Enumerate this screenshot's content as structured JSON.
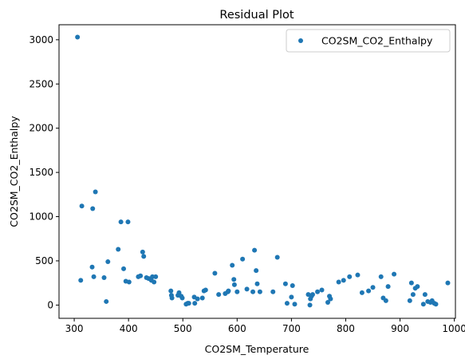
{
  "chart_data": {
    "type": "scatter",
    "title": "Residual Plot",
    "xlabel": "CO2SM_Temperature",
    "ylabel": "CO2SM_CO2_Enthalpy",
    "xlim": [
      272,
      1002
    ],
    "ylim": [
      -150,
      3170
    ],
    "xticks": [
      300,
      400,
      500,
      600,
      700,
      800,
      900,
      1000
    ],
    "yticks": [
      0,
      500,
      1000,
      1500,
      2000,
      2500,
      3000
    ],
    "legend": "top-right",
    "grid": false,
    "series": [
      {
        "name": "CO2SM_CO2_Enthalpy",
        "color": "#1f77b4",
        "points": [
          [
            306,
            3030
          ],
          [
            312,
            280
          ],
          [
            314,
            1120
          ],
          [
            333,
            430
          ],
          [
            334,
            1090
          ],
          [
            336,
            320
          ],
          [
            339,
            1280
          ],
          [
            355,
            310
          ],
          [
            359,
            40
          ],
          [
            362,
            490
          ],
          [
            381,
            630
          ],
          [
            386,
            940
          ],
          [
            391,
            410
          ],
          [
            395,
            270
          ],
          [
            399,
            940
          ],
          [
            401,
            260
          ],
          [
            418,
            320
          ],
          [
            422,
            330
          ],
          [
            426,
            600
          ],
          [
            428,
            550
          ],
          [
            433,
            310
          ],
          [
            437,
            300
          ],
          [
            442,
            280
          ],
          [
            444,
            320
          ],
          [
            447,
            260
          ],
          [
            450,
            320
          ],
          [
            478,
            160
          ],
          [
            479,
            110
          ],
          [
            480,
            80
          ],
          [
            491,
            110
          ],
          [
            493,
            140
          ],
          [
            497,
            100
          ],
          [
            499,
            80
          ],
          [
            506,
            10
          ],
          [
            509,
            20
          ],
          [
            511,
            20
          ],
          [
            521,
            90
          ],
          [
            522,
            20
          ],
          [
            527,
            70
          ],
          [
            536,
            80
          ],
          [
            539,
            160
          ],
          [
            542,
            170
          ],
          [
            559,
            360
          ],
          [
            566,
            120
          ],
          [
            578,
            130
          ],
          [
            583,
            150
          ],
          [
            584,
            160
          ],
          [
            591,
            450
          ],
          [
            594,
            290
          ],
          [
            595,
            230
          ],
          [
            600,
            150
          ],
          [
            610,
            520
          ],
          [
            618,
            180
          ],
          [
            629,
            150
          ],
          [
            632,
            620
          ],
          [
            635,
            390
          ],
          [
            637,
            240
          ],
          [
            642,
            150
          ],
          [
            666,
            150
          ],
          [
            674,
            540
          ],
          [
            689,
            240
          ],
          [
            692,
            20
          ],
          [
            700,
            90
          ],
          [
            702,
            220
          ],
          [
            706,
            10
          ],
          [
            731,
            120
          ],
          [
            734,
            0
          ],
          [
            735,
            70
          ],
          [
            737,
            100
          ],
          [
            739,
            120
          ],
          [
            748,
            150
          ],
          [
            756,
            170
          ],
          [
            767,
            30
          ],
          [
            770,
            100
          ],
          [
            772,
            70
          ],
          [
            787,
            260
          ],
          [
            796,
            280
          ],
          [
            807,
            320
          ],
          [
            822,
            340
          ],
          [
            830,
            140
          ],
          [
            842,
            160
          ],
          [
            850,
            200
          ],
          [
            865,
            320
          ],
          [
            869,
            80
          ],
          [
            874,
            50
          ],
          [
            878,
            210
          ],
          [
            889,
            350
          ],
          [
            918,
            50
          ],
          [
            921,
            250
          ],
          [
            924,
            120
          ],
          [
            928,
            190
          ],
          [
            932,
            210
          ],
          [
            943,
            10
          ],
          [
            946,
            120
          ],
          [
            951,
            40
          ],
          [
            956,
            30
          ],
          [
            959,
            50
          ],
          [
            963,
            20
          ],
          [
            966,
            10
          ],
          [
            988,
            250
          ]
        ]
      }
    ]
  }
}
